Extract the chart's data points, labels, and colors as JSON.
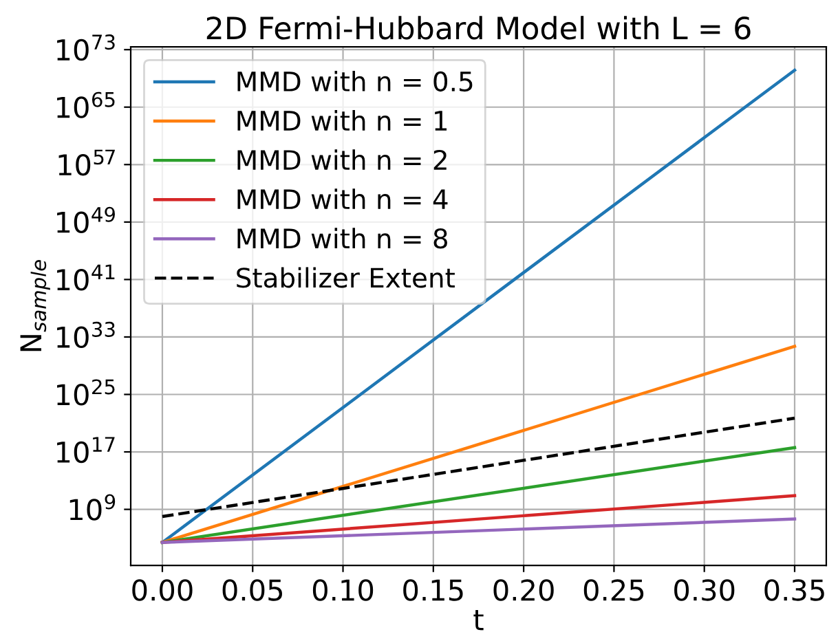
{
  "chart_data": {
    "type": "line",
    "title": "2D Fermi-Hubbard Model with L = 6",
    "xlabel": "t",
    "ylabel": "N$_{sample}$",
    "x": [
      0.0,
      0.35
    ],
    "series": [
      {
        "name": "MMD with n = 0.5",
        "color": "#1f77b4",
        "values": [
          25000.0,
          1.4e+70
        ]
      },
      {
        "name": "MMD with n = 1",
        "color": "#ff7f0e",
        "values": [
          25000.0,
          5e+31
        ]
      },
      {
        "name": "MMD with n = 2",
        "color": "#2ca02c",
        "values": [
          25000.0,
          4e+17
        ]
      },
      {
        "name": "MMD with n = 4",
        "color": "#d62728",
        "values": [
          25000.0,
          80000000000.0
        ]
      },
      {
        "name": "MMD with n = 8",
        "color": "#9467bd",
        "values": [
          25000.0,
          45000000.0
        ]
      },
      {
        "name": "Stabilizer Extent",
        "color": "#000000",
        "line_style": "dashed",
        "values": [
          100000000.0,
          5e+21
        ]
      }
    ],
    "log": "y",
    "xlim": [
      -0.0175,
      0.3675
    ],
    "ylim": [
      16.0,
      2.5e+73
    ],
    "xticks": [
      {
        "value": 0.0,
        "label": "0.00"
      },
      {
        "value": 0.05,
        "label": "0.05"
      },
      {
        "value": 0.1,
        "label": "0.10"
      },
      {
        "value": 0.15,
        "label": "0.15"
      },
      {
        "value": 0.2,
        "label": "0.20"
      },
      {
        "value": 0.25,
        "label": "0.25"
      },
      {
        "value": 0.3,
        "label": "0.30"
      },
      {
        "value": 0.35,
        "label": "0.35"
      }
    ],
    "yticks": [
      {
        "value": 1000000000.0,
        "label": "10$^{9}$"
      },
      {
        "value": 1e+17,
        "label": "10$^{17}$"
      },
      {
        "value": 1e+25,
        "label": "10$^{25}$"
      },
      {
        "value": 1e+33,
        "label": "10$^{33}$"
      },
      {
        "value": 1e+41,
        "label": "10$^{41}$"
      },
      {
        "value": 1e+49,
        "label": "10$^{49}$"
      },
      {
        "value": 1e+57,
        "label": "10$^{57}$"
      },
      {
        "value": 1e+65,
        "label": "10$^{65}$"
      },
      {
        "value": 1e+73,
        "label": "10$^{73}$"
      }
    ],
    "grid": true,
    "legend": "top left"
  }
}
